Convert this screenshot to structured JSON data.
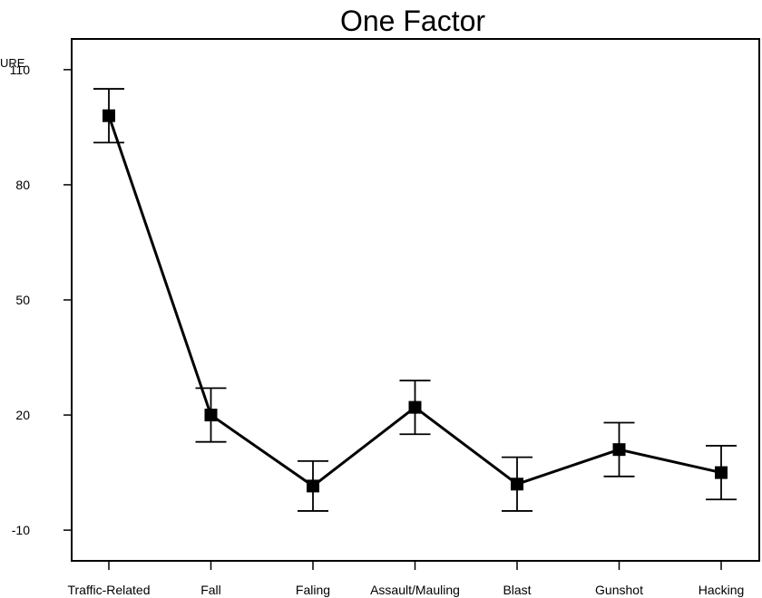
{
  "chart_data": {
    "type": "line",
    "title": "One Factor",
    "ylabel": "URE",
    "xlabel": "",
    "categories": [
      "Traffic-Related",
      "Fall",
      "Faling",
      "Assault/Mauling",
      "Blast",
      "Gunshot",
      "Hacking"
    ],
    "series": [
      {
        "values": [
          98,
          20,
          1.5,
          22,
          2,
          11,
          5
        ],
        "error": [
          7,
          7,
          6.5,
          7,
          7,
          7,
          7
        ]
      }
    ],
    "yticks": [
      -10,
      20,
      50,
      80,
      110
    ],
    "ylim": [
      -18,
      118
    ],
    "grid": false,
    "colors": {
      "line": "#000000",
      "marker": "#000000"
    }
  }
}
